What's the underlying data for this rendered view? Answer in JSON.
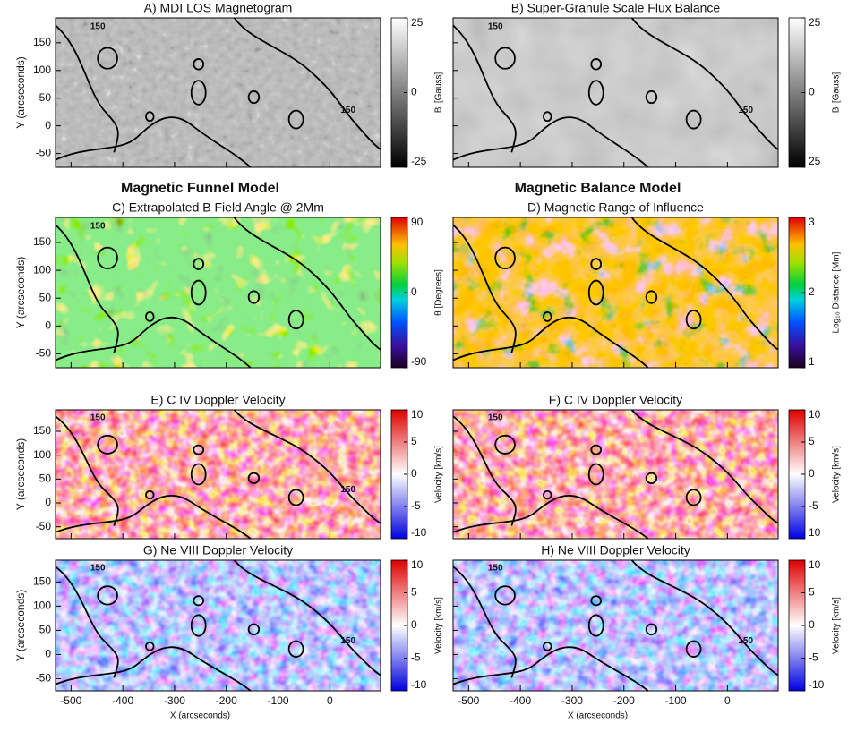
{
  "section_headers": [
    "Magnetic Funnel Model",
    "Magnetic Balance Model"
  ],
  "y_axis": {
    "label": "Y (arcseconds)",
    "ticks": [
      -50,
      0,
      50,
      100,
      150
    ],
    "lim": [
      -75,
      195
    ]
  },
  "x_axis": {
    "label": "X (arcseconds)",
    "ticks": [
      -500,
      -400,
      -300,
      -200,
      -100,
      0
    ],
    "lim": [
      -530,
      98
    ]
  },
  "panels": [
    {
      "title": "A) MDI LOS Magnetogram",
      "colormap": "gray",
      "colorbar_label": "Bₗ [Gauss]",
      "colorbar_lim": [
        -25,
        25
      ],
      "colorbar_ticks": [
        25,
        0,
        -25
      ],
      "contour_labels": [
        "150",
        "150"
      ]
    },
    {
      "title": "B) Super-Granule Scale Flux Balance",
      "colormap": "graysmooth",
      "colorbar_label": "Bₗ [Gauss]",
      "colorbar_lim": [
        -25,
        25
      ],
      "colorbar_ticks": [
        25,
        0,
        {
          "value": -25,
          "label": "25"
        }
      ],
      "contour_labels": [
        "150",
        "150"
      ]
    },
    {
      "title": "C) Extrapolated B Field Angle @ 2Mm",
      "colormap": "angle",
      "colorbar_label": "θ [Degrees]",
      "colorbar_lim": [
        -90,
        90
      ],
      "colorbar_ticks": [
        90,
        0,
        -90
      ],
      "contour_labels": [
        "150"
      ]
    },
    {
      "title": "D) Magnetic Range of Influence",
      "colormap": "range",
      "colorbar_label": "Log₁₀ Distance [Mm]",
      "colorbar_lim": [
        1,
        3
      ],
      "colorbar_ticks": [
        3,
        2,
        1
      ],
      "contour_labels": []
    },
    {
      "title": "E) C IV Doppler Velocity",
      "colormap": "red",
      "colorbar_label": "Velocity [km/s]",
      "colorbar_lim": [
        -10,
        10
      ],
      "colorbar_ticks": [
        10,
        5,
        0,
        -5,
        -10
      ],
      "contour_labels": [
        "150",
        "150"
      ]
    },
    {
      "title": "F) C IV Doppler Velocity",
      "colormap": "red",
      "colorbar_label": "Velocity [km/s]",
      "colorbar_lim": [
        -10,
        10
      ],
      "colorbar_ticks": [
        10,
        5,
        0,
        -5,
        {
          "value": -10,
          "label": "10"
        }
      ],
      "contour_labels": [
        "150"
      ]
    },
    {
      "title": "G) Ne VIII Doppler Velocity",
      "colormap": "blue",
      "colorbar_label": "Velocity [km/s]",
      "colorbar_lim": [
        -10,
        10
      ],
      "colorbar_ticks": [
        10,
        5,
        0,
        -5,
        -10
      ],
      "contour_labels": [
        "150",
        "150"
      ]
    },
    {
      "title": "H) Ne VIII Doppler Velocity",
      "colormap": "blue",
      "colorbar_label": "Velocity [km/s]",
      "colorbar_lim": [
        -10,
        10
      ],
      "colorbar_ticks": [
        10,
        5,
        0,
        -5,
        -10
      ],
      "contour_labels": [
        "150",
        "150"
      ]
    }
  ]
}
